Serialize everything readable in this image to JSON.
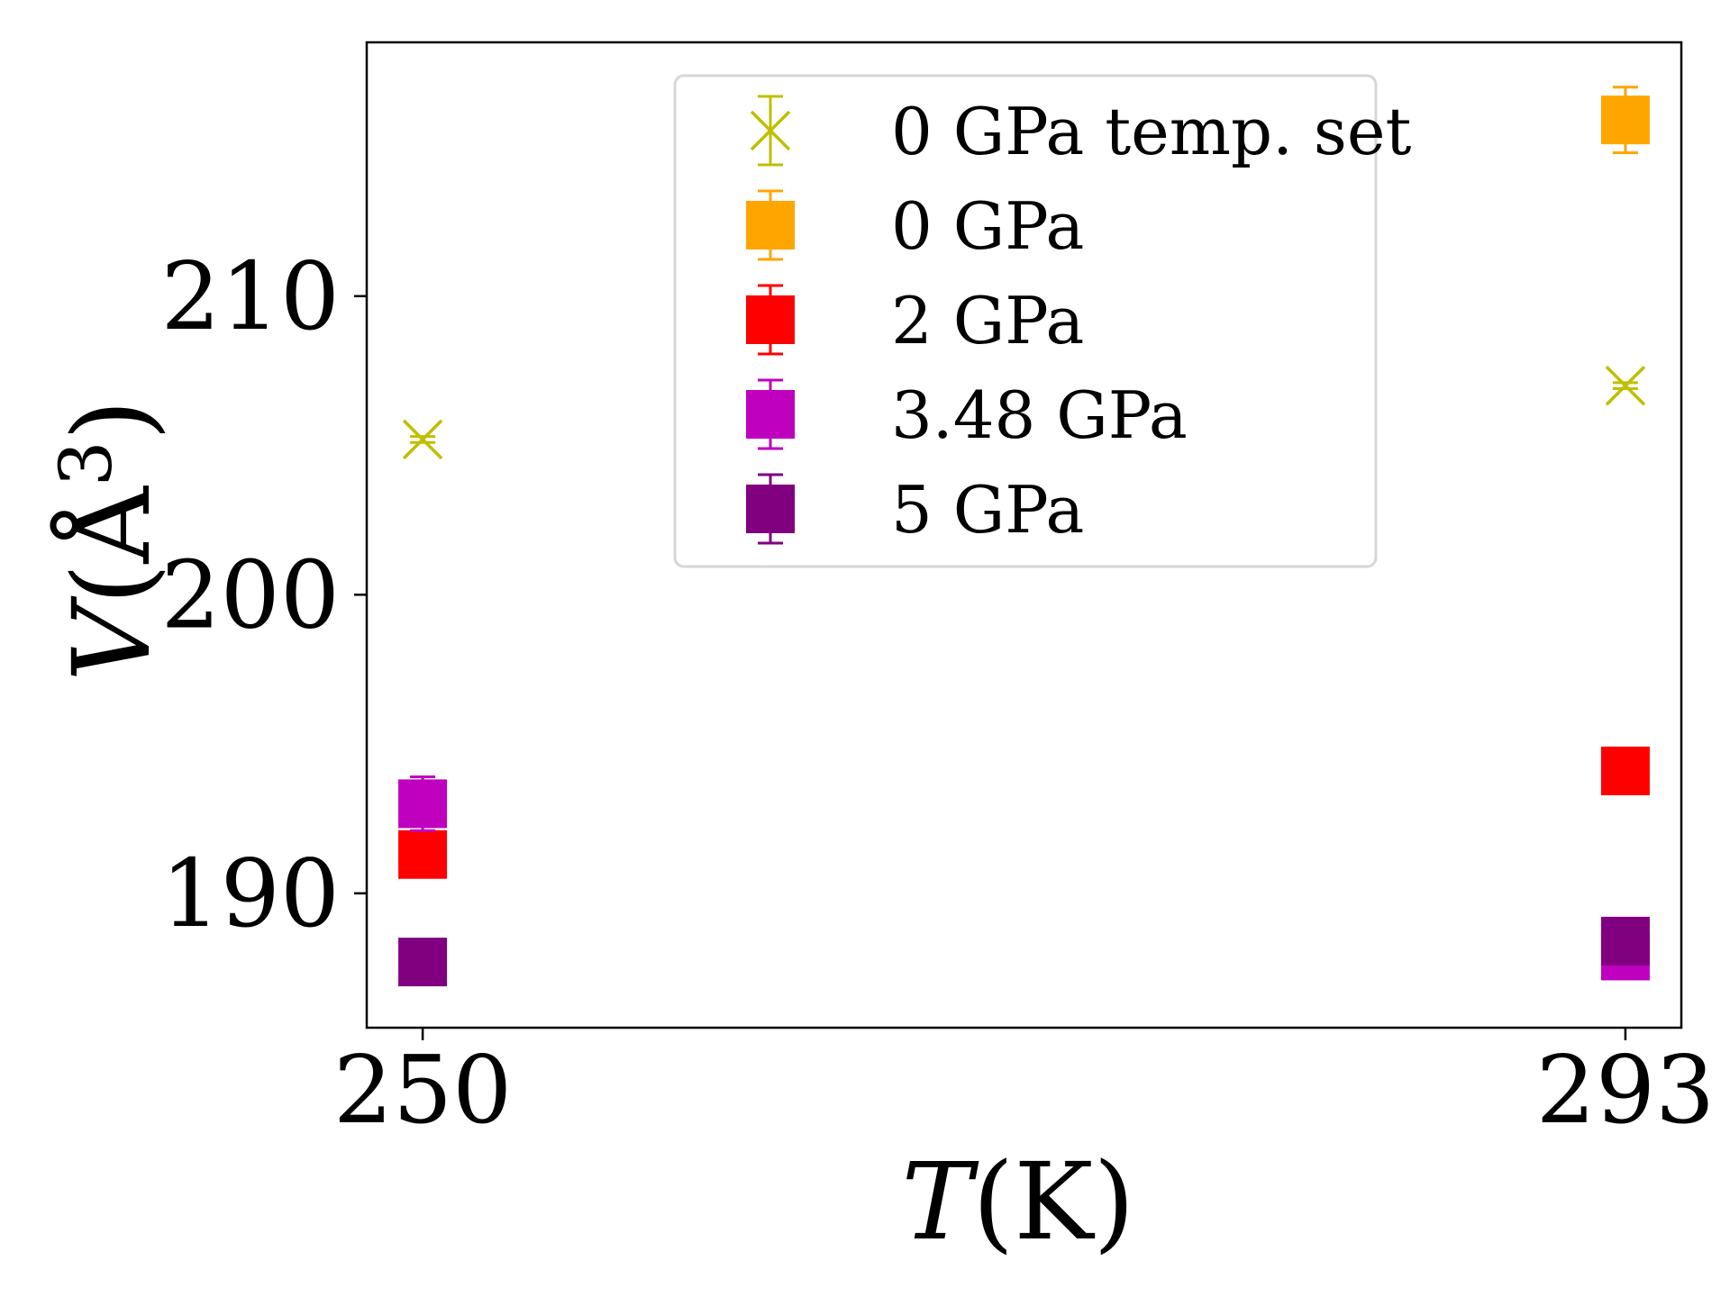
{
  "chart_data": {
    "type": "scatter",
    "xlabel_parts": [
      "T",
      "(K)"
    ],
    "ylabel_parts": [
      "V",
      "(Å",
      "3",
      ")"
    ],
    "x_ticks": [
      250,
      293
    ],
    "y_ticks": [
      190,
      200,
      210
    ],
    "xlim": [
      248,
      295
    ],
    "ylim": [
      185.5,
      218.5
    ],
    "grid": false,
    "legend_position": "top-center",
    "series": [
      {
        "name": "0 GPa temp. set",
        "marker": "x",
        "color": "#bfbf00",
        "points": [
          {
            "x": 250,
            "y": 205.2,
            "err": 0.1
          },
          {
            "x": 293,
            "y": 207.0,
            "err": 0.1
          }
        ]
      },
      {
        "name": "0 GPa",
        "marker": "square",
        "color": "#ffa500",
        "points": [
          {
            "x": 293,
            "y": 215.9,
            "err": 1.1
          }
        ]
      },
      {
        "name": "2 GPa",
        "marker": "square",
        "color": "#ff0000",
        "points": [
          {
            "x": 250,
            "y": 191.3,
            "err": 0.4
          },
          {
            "x": 293,
            "y": 194.1,
            "err": 0.3
          }
        ]
      },
      {
        "name": "3.48 GPa",
        "marker": "square",
        "color": "#bf00bf",
        "points": [
          {
            "x": 250,
            "y": 193.0,
            "err": 0.9
          },
          {
            "x": 293,
            "y": 187.9,
            "err": 0.3
          }
        ]
      },
      {
        "name": "5 GPa",
        "marker": "square",
        "color": "#800080",
        "points": [
          {
            "x": 250,
            "y": 187.7,
            "err": 0.2
          },
          {
            "x": 293,
            "y": 188.4,
            "err": 0.3
          }
        ]
      }
    ]
  }
}
